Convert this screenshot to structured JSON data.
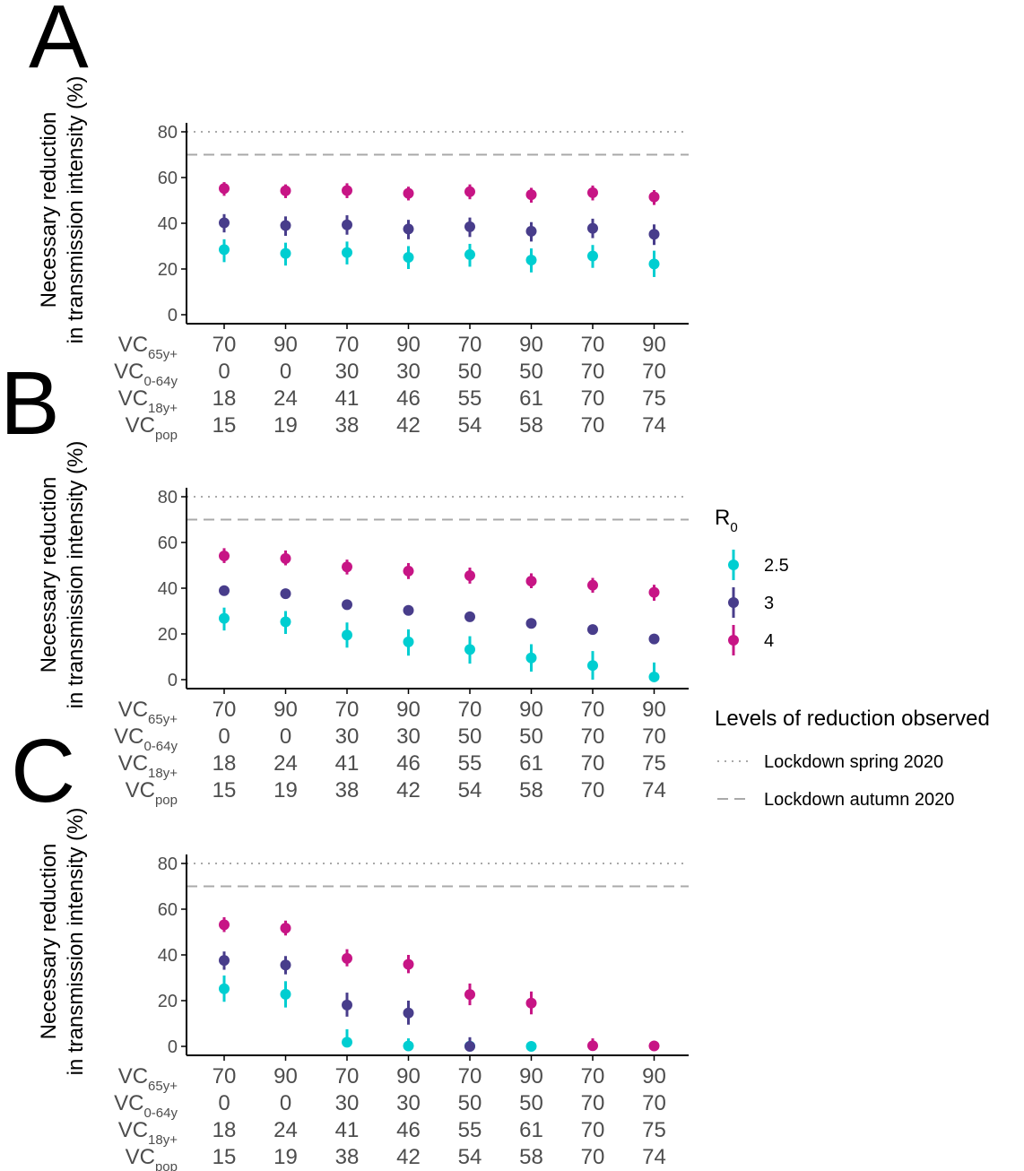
{
  "colors": {
    "r0_2_5": "#00CED1",
    "r0_3": "#483D8B",
    "r0_4": "#C71585",
    "reference_line": "#A9A9A9",
    "axis": "#000000",
    "text": "#4d4d4d"
  },
  "row_labels": [
    {
      "main": "VC",
      "sub": "65y+"
    },
    {
      "main": "VC",
      "sub": "0-64y"
    },
    {
      "main": "VC",
      "sub": "18y+"
    },
    {
      "main": "VC",
      "sub": "pop"
    }
  ],
  "ylabel_line1": "Necessary reduction",
  "ylabel_line2": "in transmission intensity (%)",
  "legend": {
    "r0_title_main": "R",
    "r0_title_sub": "0",
    "r0_items": [
      {
        "label": "2.5",
        "color": "#00CED1"
      },
      {
        "label": "3",
        "color": "#483D8B"
      },
      {
        "label": "4",
        "color": "#C71585"
      }
    ],
    "lines_title": "Levels of reduction observed",
    "line_items": [
      {
        "label": "Lockdown spring 2020",
        "style": "dotted"
      },
      {
        "label": "Lockdown autumn 2020",
        "style": "dashed"
      }
    ]
  },
  "chart_data": [
    {
      "panel": "A",
      "type": "scatter",
      "ylim": [
        0,
        80
      ],
      "yticks": [
        0,
        20,
        40,
        60,
        80
      ],
      "categories": {
        "VC65y+": [
          "70",
          "90",
          "70",
          "90",
          "70",
          "90",
          "70",
          "90"
        ],
        "VC0-64y": [
          "0",
          "0",
          "30",
          "30",
          "50",
          "50",
          "70",
          "70"
        ],
        "VC18y+": [
          "18",
          "24",
          "41",
          "46",
          "55",
          "61",
          "70",
          "75"
        ],
        "VCpop": [
          "15",
          "19",
          "38",
          "42",
          "54",
          "58",
          "70",
          "74"
        ]
      },
      "reference_lines": [
        {
          "name": "Lockdown spring 2020",
          "y": 80,
          "style": "dotted"
        },
        {
          "name": "Lockdown autumn 2020",
          "y": 70,
          "style": "dashed"
        }
      ],
      "series": [
        {
          "name": "2.5",
          "values": [
            28.5,
            26.8,
            27.2,
            25.1,
            26.3,
            23.9,
            25.7,
            22.2
          ],
          "lower": [
            23,
            21.5,
            22,
            20,
            21,
            18.5,
            20.5,
            16.5
          ],
          "upper": [
            33,
            31.5,
            32,
            30,
            31,
            29,
            30.5,
            28
          ]
        },
        {
          "name": "3",
          "values": [
            40.2,
            39.0,
            39.3,
            37.5,
            38.5,
            36.5,
            37.8,
            35.2
          ],
          "lower": [
            36,
            34.5,
            35,
            33,
            34,
            32,
            33.5,
            30.5
          ],
          "upper": [
            44,
            43,
            43.5,
            41.5,
            42.5,
            40.5,
            42,
            39.5
          ]
        },
        {
          "name": "4",
          "values": [
            55.2,
            54.2,
            54.3,
            53.1,
            53.8,
            52.5,
            53.4,
            51.5
          ],
          "lower": [
            52,
            51,
            51,
            50,
            50.5,
            49,
            50,
            48
          ],
          "upper": [
            58,
            57,
            57.5,
            56,
            57,
            55.5,
            56.5,
            54.5
          ]
        }
      ]
    },
    {
      "panel": "B",
      "type": "scatter",
      "ylim": [
        0,
        80
      ],
      "yticks": [
        0,
        20,
        40,
        60,
        80
      ],
      "categories": {
        "VC65y+": [
          "70",
          "90",
          "70",
          "90",
          "70",
          "90",
          "70",
          "90"
        ],
        "VC0-64y": [
          "0",
          "0",
          "30",
          "30",
          "50",
          "50",
          "70",
          "70"
        ],
        "VC18y+": [
          "18",
          "24",
          "41",
          "46",
          "55",
          "61",
          "70",
          "75"
        ],
        "VCpop": [
          "15",
          "19",
          "38",
          "42",
          "54",
          "58",
          "70",
          "74"
        ]
      },
      "reference_lines": [
        {
          "name": "Lockdown spring 2020",
          "y": 80,
          "style": "dotted"
        },
        {
          "name": "Lockdown autumn 2020",
          "y": 70,
          "style": "dashed"
        }
      ],
      "series": [
        {
          "name": "2.5",
          "values": [
            26.8,
            25.3,
            19.5,
            16.5,
            13.2,
            9.5,
            6.2,
            1.2
          ],
          "lower": [
            21.5,
            20,
            14,
            10.5,
            7,
            3.5,
            0,
            0
          ],
          "upper": [
            31.5,
            30,
            25,
            22,
            19,
            15.5,
            12.5,
            7.5
          ]
        },
        {
          "name": "3",
          "values": [
            38.9,
            37.6,
            32.8,
            30.3,
            27.5,
            24.6,
            21.9,
            17.8
          ],
          "lower": [
            35,
            33.5,
            28.5,
            26,
            23,
            20,
            17,
            13
          ]
        },
        {
          "name": "4",
          "values": [
            54.1,
            53.0,
            49.3,
            47.5,
            45.5,
            43.1,
            41.3,
            38.2
          ],
          "lower": [
            51,
            50,
            46,
            44,
            42,
            40,
            38,
            34.5
          ],
          "upper": [
            57.5,
            56.5,
            52.5,
            51,
            49,
            46.5,
            44.5,
            41.5
          ]
        }
      ]
    },
    {
      "panel": "C",
      "type": "scatter",
      "ylim": [
        0,
        80
      ],
      "yticks": [
        0,
        20,
        40,
        60,
        80
      ],
      "categories": {
        "VC65y+": [
          "70",
          "90",
          "70",
          "90",
          "70",
          "90",
          "70",
          "90"
        ],
        "VC0-64y": [
          "0",
          "0",
          "30",
          "30",
          "50",
          "50",
          "70",
          "70"
        ],
        "VC18y+": [
          "18",
          "24",
          "41",
          "46",
          "55",
          "61",
          "70",
          "75"
        ],
        "VCpop": [
          "15",
          "19",
          "38",
          "42",
          "54",
          "58",
          "70",
          "74"
        ]
      },
      "reference_lines": [
        {
          "name": "Lockdown spring 2020",
          "y": 80,
          "style": "dotted"
        },
        {
          "name": "Lockdown autumn 2020",
          "y": 70,
          "style": "dashed"
        }
      ],
      "series": [
        {
          "name": "2.5",
          "values": [
            25.2,
            22.8,
            1.8,
            0.2,
            0.1,
            0.0,
            null,
            null
          ],
          "lower": [
            19.5,
            17,
            0,
            0,
            0,
            0,
            null,
            null
          ],
          "upper": [
            31,
            28.5,
            7.5,
            3.5,
            2.5,
            1,
            null,
            null
          ]
        },
        {
          "name": "3",
          "values": [
            37.6,
            35.6,
            18.1,
            14.6,
            0.0,
            null,
            null,
            null
          ],
          "lower": [
            33.5,
            31.5,
            13,
            9.5,
            0,
            null,
            null,
            null
          ],
          "upper": [
            41.5,
            39.5,
            23.5,
            20,
            4,
            null,
            null,
            null
          ]
        },
        {
          "name": "4",
          "values": [
            53.2,
            51.7,
            38.5,
            35.9,
            22.7,
            18.9,
            0.3,
            0.2
          ],
          "lower": [
            50,
            48.5,
            35,
            32,
            18,
            14,
            0,
            0
          ],
          "upper": [
            56.5,
            55,
            42.5,
            40,
            27.5,
            24,
            3.5,
            1.5
          ]
        }
      ]
    }
  ]
}
